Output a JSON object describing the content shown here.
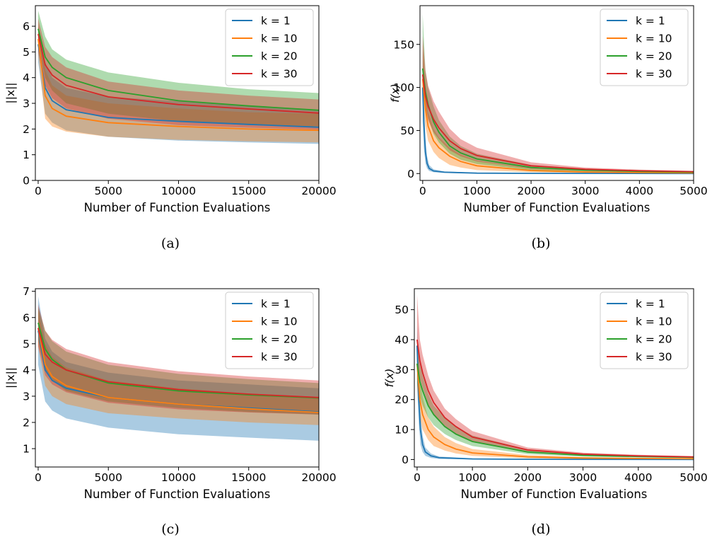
{
  "colors": {
    "k1": "#1f77b4",
    "k10": "#ff7f0e",
    "k20": "#2ca02c",
    "k30": "#d62728"
  },
  "chart_data": [
    {
      "id": "a",
      "caption": "(a)",
      "type": "line",
      "xlabel": "Number of Function Evaluations",
      "ylabel": "||x||",
      "xlim": [
        -200,
        20000
      ],
      "ylim": [
        0,
        6.8
      ],
      "xticks": [
        0,
        5000,
        10000,
        15000,
        20000
      ],
      "yticks": [
        0,
        1,
        2,
        3,
        4,
        5,
        6
      ],
      "legend": "top-right",
      "grid": false,
      "series": [
        {
          "name": "k = 1",
          "color": "#1f77b4",
          "x": [
            0,
            500,
            1000,
            2000,
            5000,
            10000,
            15000,
            20000
          ],
          "y": [
            5.3,
            3.6,
            3.1,
            2.75,
            2.45,
            2.3,
            2.18,
            2.07
          ],
          "lower": [
            4.6,
            2.6,
            2.25,
            1.95,
            1.7,
            1.55,
            1.48,
            1.42
          ],
          "upper": [
            6.0,
            4.6,
            4.0,
            3.6,
            3.25,
            3.08,
            2.92,
            2.75
          ]
        },
        {
          "name": "k = 10",
          "color": "#ff7f0e",
          "x": [
            0,
            500,
            1000,
            2000,
            5000,
            10000,
            15000,
            20000
          ],
          "y": [
            5.5,
            3.3,
            2.8,
            2.5,
            2.25,
            2.1,
            2.0,
            1.95
          ],
          "lower": [
            4.9,
            2.4,
            2.1,
            1.9,
            1.7,
            1.58,
            1.52,
            1.48
          ],
          "upper": [
            6.1,
            4.3,
            3.7,
            3.3,
            3.0,
            2.8,
            2.65,
            2.6
          ]
        },
        {
          "name": "k = 20",
          "color": "#2ca02c",
          "x": [
            0,
            500,
            1000,
            2000,
            5000,
            10000,
            15000,
            20000
          ],
          "y": [
            5.9,
            4.8,
            4.4,
            4.0,
            3.5,
            3.1,
            2.9,
            2.73
          ],
          "lower": [
            5.4,
            4.0,
            3.5,
            3.0,
            2.6,
            2.3,
            2.15,
            2.1
          ],
          "upper": [
            6.6,
            5.6,
            5.1,
            4.7,
            4.2,
            3.8,
            3.55,
            3.4
          ]
        },
        {
          "name": "k = 30",
          "color": "#d62728",
          "x": [
            0,
            500,
            1000,
            2000,
            5000,
            10000,
            15000,
            20000
          ],
          "y": [
            5.7,
            4.5,
            4.1,
            3.7,
            3.25,
            2.95,
            2.78,
            2.62
          ],
          "lower": [
            5.0,
            3.7,
            3.2,
            2.8,
            2.4,
            2.15,
            2.05,
            1.98
          ],
          "upper": [
            6.3,
            5.2,
            4.8,
            4.4,
            3.85,
            3.5,
            3.3,
            3.15
          ]
        }
      ]
    },
    {
      "id": "b",
      "caption": "(b)",
      "type": "line",
      "xlabel": "Number of Function Evaluations",
      "ylabel": "f(x)",
      "xlim": [
        -50,
        5000
      ],
      "ylim": [
        -8,
        195
      ],
      "xticks": [
        0,
        1000,
        2000,
        3000,
        4000,
        5000
      ],
      "yticks": [
        0,
        50,
        100,
        150
      ],
      "legend": "top-right",
      "grid": false,
      "series": [
        {
          "name": "k = 1",
          "color": "#1f77b4",
          "x": [
            0,
            20,
            50,
            80,
            120,
            200,
            400,
            1000,
            2000,
            5000
          ],
          "y": [
            100,
            60,
            25,
            12,
            6,
            3,
            1.5,
            0.5,
            0.2,
            0.05
          ],
          "lower": [
            60,
            30,
            12,
            6,
            3,
            1.5,
            0.7,
            0.2,
            0.1,
            0
          ],
          "upper": [
            145,
            90,
            40,
            20,
            10,
            5,
            2.5,
            0.8,
            0.3,
            0.1
          ]
        },
        {
          "name": "k = 10",
          "color": "#ff7f0e",
          "x": [
            0,
            50,
            100,
            200,
            300,
            500,
            700,
            1000,
            2000,
            3000,
            4000,
            5000
          ],
          "y": [
            110,
            75,
            55,
            38,
            30,
            20,
            14,
            9,
            3.5,
            1.8,
            1.1,
            0.7
          ],
          "lower": [
            85,
            55,
            38,
            25,
            18,
            10,
            7,
            4,
            1.5,
            0.8,
            0.5,
            0.3
          ],
          "upper": [
            150,
            100,
            72,
            52,
            42,
            30,
            22,
            15,
            6,
            3,
            1.8,
            1.2
          ]
        },
        {
          "name": "k = 20",
          "color": "#2ca02c",
          "x": [
            0,
            50,
            100,
            200,
            300,
            500,
            700,
            1000,
            2000,
            3000,
            4000,
            5000
          ],
          "y": [
            122,
            95,
            80,
            60,
            48,
            32,
            24,
            17,
            7,
            4,
            2.5,
            1.6
          ],
          "lower": [
            100,
            78,
            64,
            46,
            36,
            23,
            16,
            11,
            4,
            2.2,
            1.4,
            0.9
          ],
          "upper": [
            185,
            120,
            100,
            78,
            62,
            43,
            32,
            23,
            10,
            5.5,
            3.5,
            2.3
          ]
        },
        {
          "name": "k = 30",
          "color": "#d62728",
          "x": [
            0,
            50,
            100,
            200,
            300,
            500,
            700,
            1000,
            2000,
            3000,
            4000,
            5000
          ],
          "y": [
            115,
            90,
            78,
            63,
            53,
            38,
            29,
            21,
            9,
            5,
            3.2,
            2.2
          ],
          "lower": [
            95,
            74,
            62,
            48,
            40,
            27,
            20,
            14,
            5.5,
            3,
            2,
            1.3
          ],
          "upper": [
            160,
            120,
            102,
            84,
            72,
            52,
            40,
            30,
            13,
            7,
            4.5,
            3.1
          ]
        }
      ]
    },
    {
      "id": "c",
      "caption": "(c)",
      "type": "line",
      "xlabel": "Number of Function Evaluations",
      "ylabel": "||x||",
      "xlim": [
        -200,
        20000
      ],
      "ylim": [
        0.3,
        7.1
      ],
      "xticks": [
        0,
        5000,
        10000,
        15000,
        20000
      ],
      "yticks": [
        1,
        2,
        3,
        4,
        5,
        6,
        7
      ],
      "legend": "top-right",
      "grid": false,
      "series": [
        {
          "name": "k = 1",
          "color": "#1f77b4",
          "x": [
            0,
            500,
            1000,
            2000,
            5000,
            10000,
            15000,
            20000
          ],
          "y": [
            5.5,
            4.0,
            3.6,
            3.3,
            2.95,
            2.7,
            2.55,
            2.4
          ],
          "lower": [
            4.2,
            2.8,
            2.45,
            2.15,
            1.8,
            1.55,
            1.42,
            1.3
          ],
          "upper": [
            6.8,
            5.2,
            4.7,
            4.3,
            3.9,
            3.6,
            3.45,
            3.3
          ]
        },
        {
          "name": "k = 10",
          "color": "#ff7f0e",
          "x": [
            0,
            500,
            1000,
            2000,
            5000,
            10000,
            15000,
            20000
          ],
          "y": [
            5.6,
            4.2,
            3.75,
            3.4,
            2.95,
            2.7,
            2.52,
            2.38
          ],
          "lower": [
            4.9,
            3.4,
            3.0,
            2.7,
            2.35,
            2.15,
            2.0,
            1.9
          ],
          "upper": [
            6.3,
            5.0,
            4.5,
            4.1,
            3.6,
            3.3,
            3.1,
            2.95
          ]
        },
        {
          "name": "k = 20",
          "color": "#2ca02c",
          "x": [
            0,
            500,
            1000,
            2000,
            5000,
            10000,
            15000,
            20000
          ],
          "y": [
            5.8,
            4.8,
            4.4,
            4.0,
            3.5,
            3.2,
            3.05,
            2.93
          ],
          "lower": [
            5.1,
            4.0,
            3.6,
            3.2,
            2.8,
            2.55,
            2.4,
            2.3
          ],
          "upper": [
            6.4,
            5.5,
            5.1,
            4.7,
            4.2,
            3.85,
            3.65,
            3.5
          ]
        },
        {
          "name": "k = 30",
          "color": "#d62728",
          "x": [
            0,
            500,
            1000,
            2000,
            5000,
            10000,
            15000,
            20000
          ],
          "y": [
            5.6,
            4.6,
            4.3,
            4.0,
            3.55,
            3.25,
            3.08,
            2.95
          ],
          "lower": [
            4.9,
            3.8,
            3.45,
            3.15,
            2.75,
            2.5,
            2.38,
            2.3
          ],
          "upper": [
            6.5,
            5.5,
            5.15,
            4.8,
            4.3,
            3.95,
            3.75,
            3.6
          ]
        }
      ]
    },
    {
      "id": "d",
      "caption": "(d)",
      "type": "line",
      "xlabel": "Number of Function Evaluations",
      "ylabel": "f(x)",
      "xlim": [
        -50,
        5000
      ],
      "ylim": [
        -2.5,
        57
      ],
      "xticks": [
        0,
        1000,
        2000,
        3000,
        4000,
        5000
      ],
      "yticks": [
        0,
        10,
        20,
        30,
        40,
        50
      ],
      "legend": "top-right",
      "grid": false,
      "series": [
        {
          "name": "k = 1",
          "color": "#1f77b4",
          "x": [
            0,
            30,
            60,
            100,
            150,
            250,
            400,
            1000,
            2000,
            5000
          ],
          "y": [
            38,
            20,
            10,
            5,
            2.5,
            1.2,
            0.6,
            0.2,
            0.08,
            0.02
          ],
          "lower": [
            25,
            12,
            5,
            2.5,
            1.2,
            0.5,
            0.2,
            0.05,
            0.02,
            0
          ],
          "upper": [
            45,
            30,
            16,
            8,
            4,
            2,
            1,
            0.4,
            0.15,
            0.05
          ]
        },
        {
          "name": "k = 10",
          "color": "#ff7f0e",
          "x": [
            0,
            50,
            100,
            200,
            300,
            500,
            700,
            1000,
            2000,
            3000,
            4000,
            5000
          ],
          "y": [
            32,
            20,
            15,
            10,
            7.5,
            5,
            3.5,
            2.2,
            0.9,
            0.5,
            0.35,
            0.25
          ],
          "lower": [
            24,
            14,
            10,
            6.5,
            4.5,
            3,
            2,
            1.2,
            0.4,
            0.2,
            0.15,
            0.1
          ],
          "upper": [
            40,
            27,
            21,
            14,
            11,
            7.5,
            5.5,
            3.5,
            1.5,
            0.8,
            0.55,
            0.4
          ]
        },
        {
          "name": "k = 20",
          "color": "#2ca02c",
          "x": [
            0,
            50,
            100,
            200,
            300,
            500,
            700,
            1000,
            2000,
            3000,
            4000,
            5000
          ],
          "y": [
            32,
            26,
            23,
            18,
            15,
            11,
            8.5,
            6,
            2.5,
            1.4,
            1.0,
            0.7
          ],
          "lower": [
            25,
            21,
            18,
            14,
            11.5,
            8.5,
            6.5,
            4.5,
            1.8,
            1.0,
            0.7,
            0.5
          ],
          "upper": [
            40,
            32,
            28,
            22,
            18,
            14,
            11,
            8,
            3.3,
            1.9,
            1.3,
            0.95
          ]
        },
        {
          "name": "k = 30",
          "color": "#d62728",
          "x": [
            0,
            50,
            100,
            200,
            300,
            500,
            700,
            1000,
            2000,
            3000,
            4000,
            5000
          ],
          "y": [
            40,
            33,
            29,
            23,
            19,
            14,
            11,
            7.5,
            3.2,
            1.8,
            1.2,
            0.85
          ],
          "lower": [
            32,
            27,
            24,
            18.5,
            15,
            11,
            8.5,
            5.8,
            2.4,
            1.3,
            0.9,
            0.6
          ],
          "upper": [
            55,
            40,
            35,
            28,
            23,
            17,
            13.5,
            9.5,
            4.0,
            2.3,
            1.55,
            1.1
          ]
        }
      ]
    }
  ]
}
